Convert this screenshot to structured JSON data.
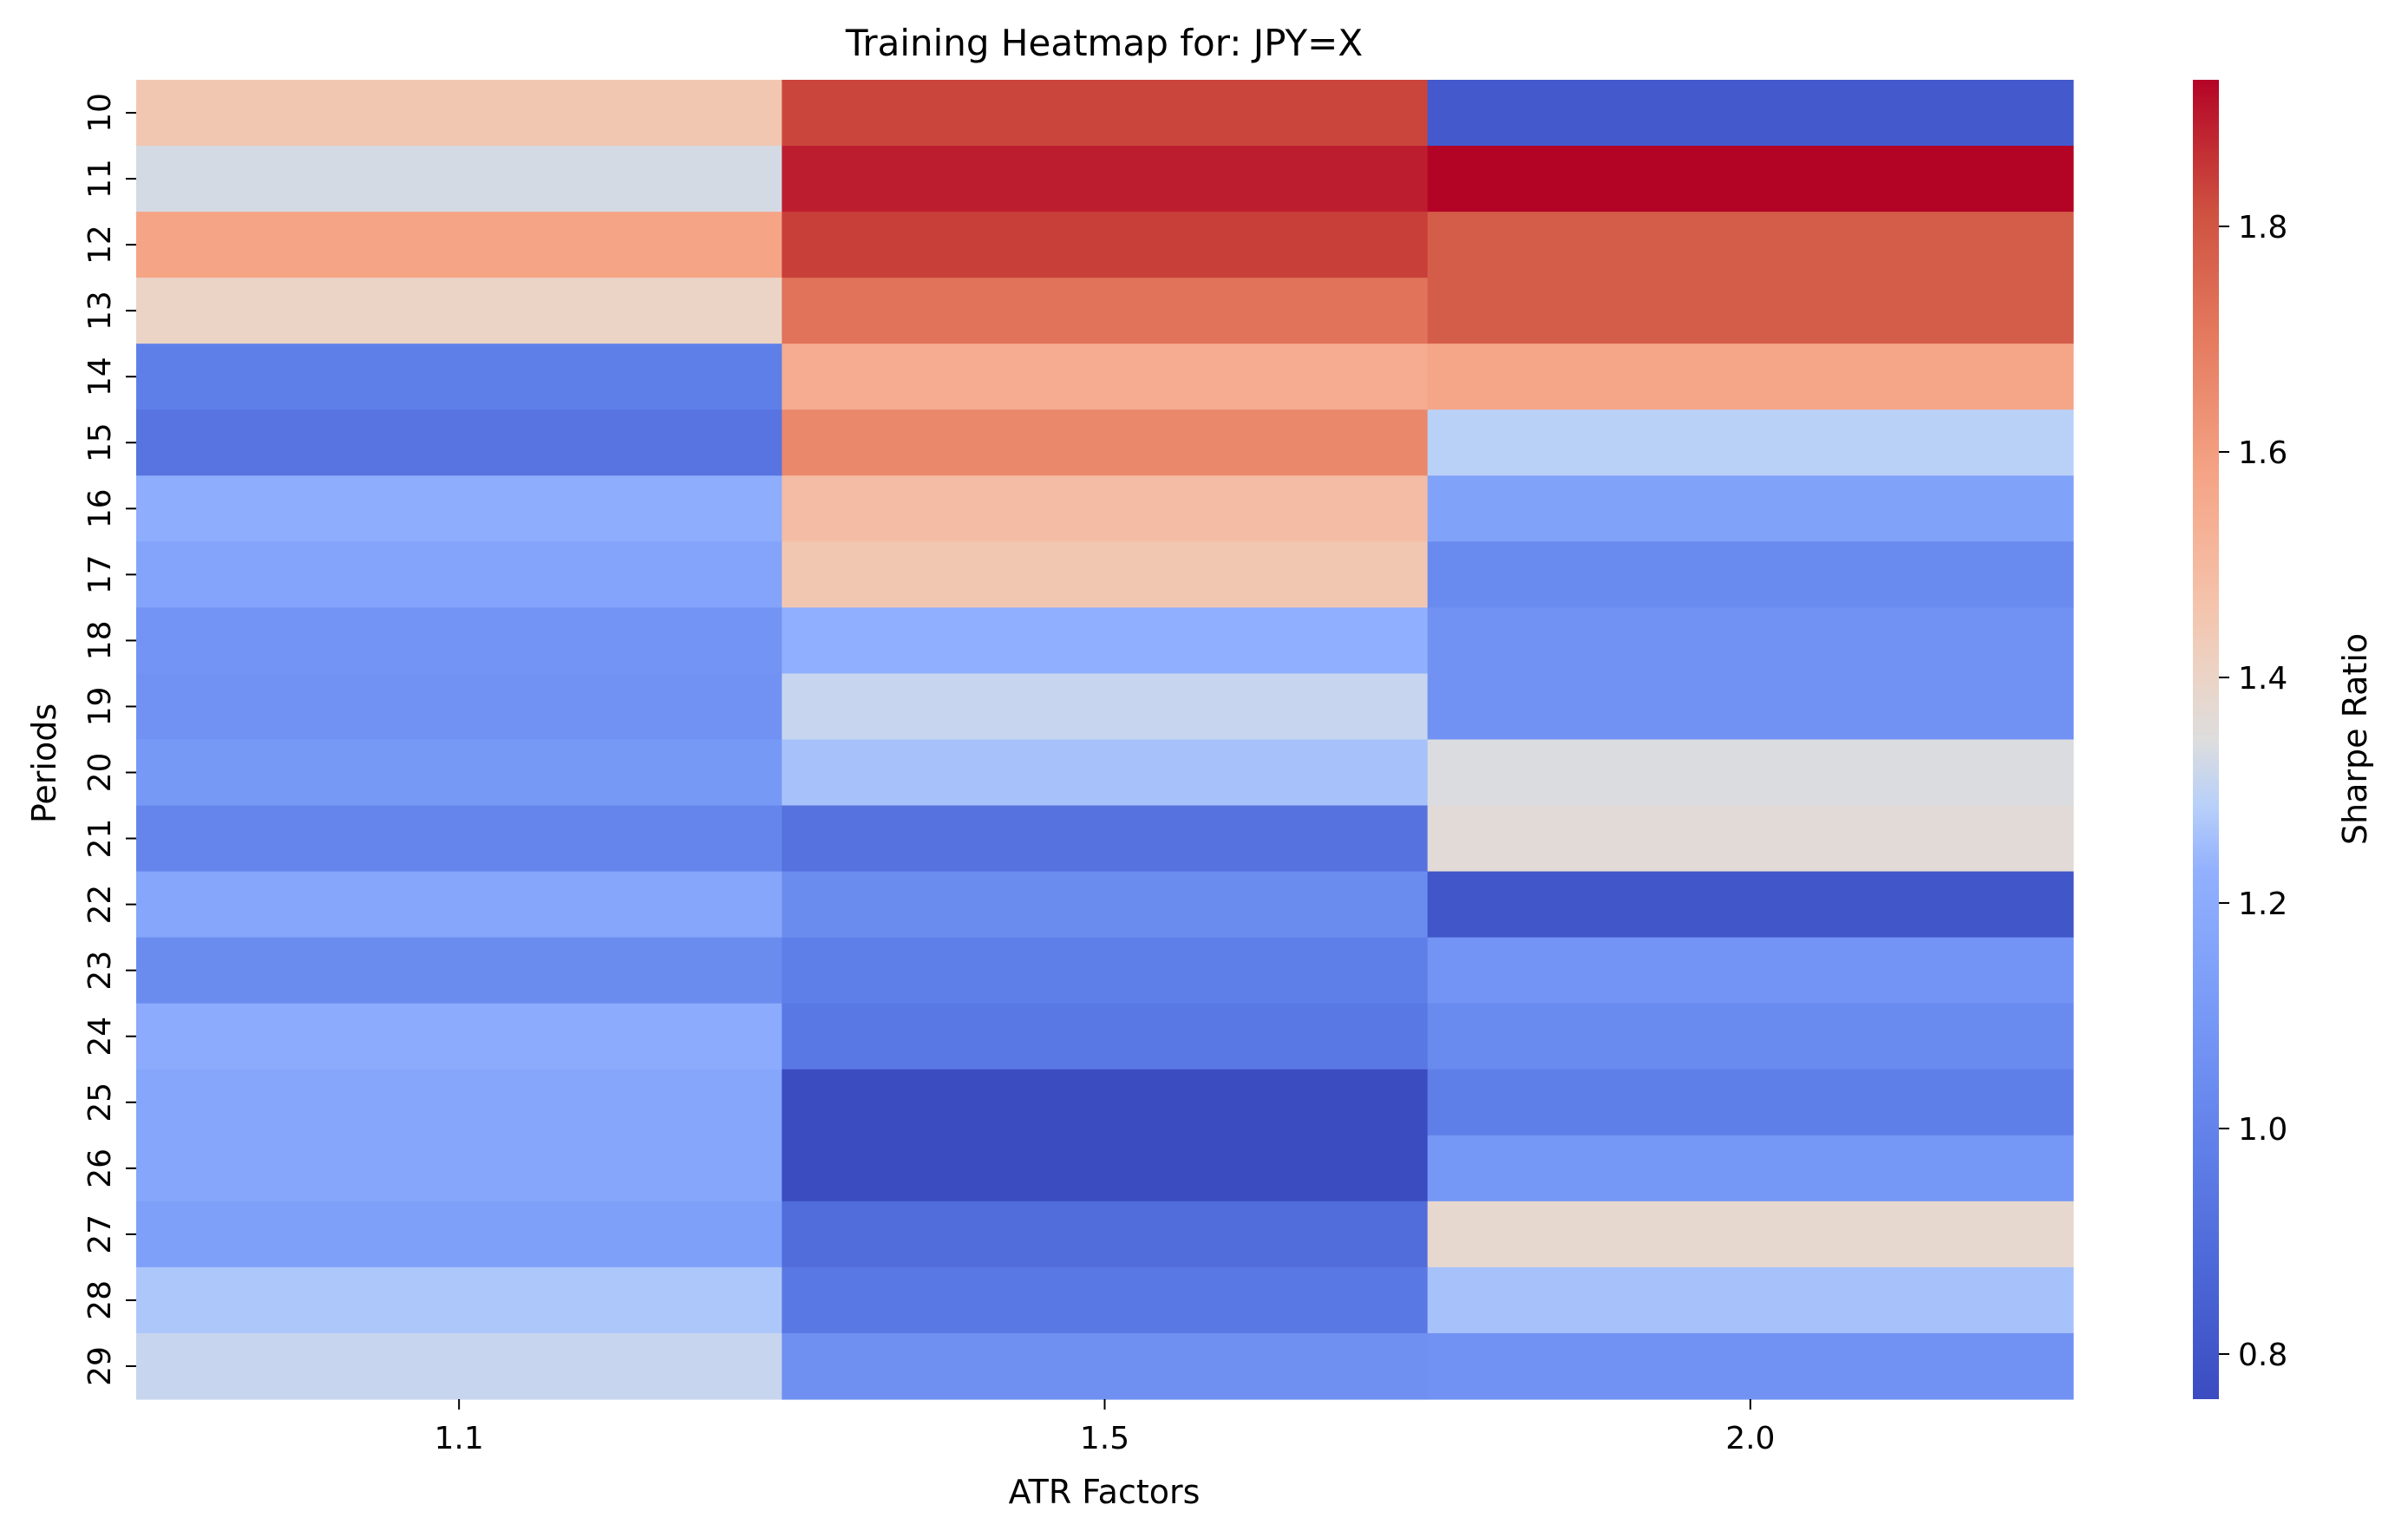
{
  "chart_data": {
    "type": "heatmap",
    "title": "Training Heatmap for: JPY=X",
    "xlabel": "ATR Factors",
    "ylabel": "Periods",
    "x_categories": [
      "1.1",
      "1.5",
      "2.0"
    ],
    "y_categories": [
      "10",
      "11",
      "12",
      "13",
      "14",
      "15",
      "16",
      "17",
      "18",
      "19",
      "20",
      "21",
      "22",
      "23",
      "24",
      "25",
      "26",
      "27",
      "28",
      "29"
    ],
    "values": [
      [
        1.45,
        1.83,
        0.82
      ],
      [
        1.33,
        1.89,
        1.93
      ],
      [
        1.58,
        1.84,
        1.78
      ],
      [
        1.4,
        1.72,
        1.78
      ],
      [
        0.98,
        1.55,
        1.57
      ],
      [
        0.93,
        1.66,
        1.29
      ],
      [
        1.21,
        1.49,
        1.15
      ],
      [
        1.16,
        1.45,
        1.03
      ],
      [
        1.08,
        1.22,
        1.07
      ],
      [
        1.07,
        1.31,
        1.07
      ],
      [
        1.1,
        1.26,
        1.34
      ],
      [
        1.01,
        0.92,
        1.36
      ],
      [
        1.17,
        1.04,
        0.8
      ],
      [
        1.04,
        0.98,
        1.08
      ],
      [
        1.2,
        0.95,
        1.03
      ],
      [
        1.17,
        0.76,
        0.98
      ],
      [
        1.17,
        0.76,
        1.09
      ],
      [
        1.14,
        0.9,
        1.38
      ],
      [
        1.27,
        0.95,
        1.26
      ],
      [
        1.31,
        1.06,
        1.07
      ]
    ],
    "colorbar": {
      "label": "Sharpe Ratio",
      "vmin": 0.76,
      "vmax": 1.93,
      "ticks": [
        "0.8",
        "1.0",
        "1.2",
        "1.4",
        "1.6",
        "1.8"
      ],
      "colormap": "coolwarm"
    },
    "grid": false
  }
}
